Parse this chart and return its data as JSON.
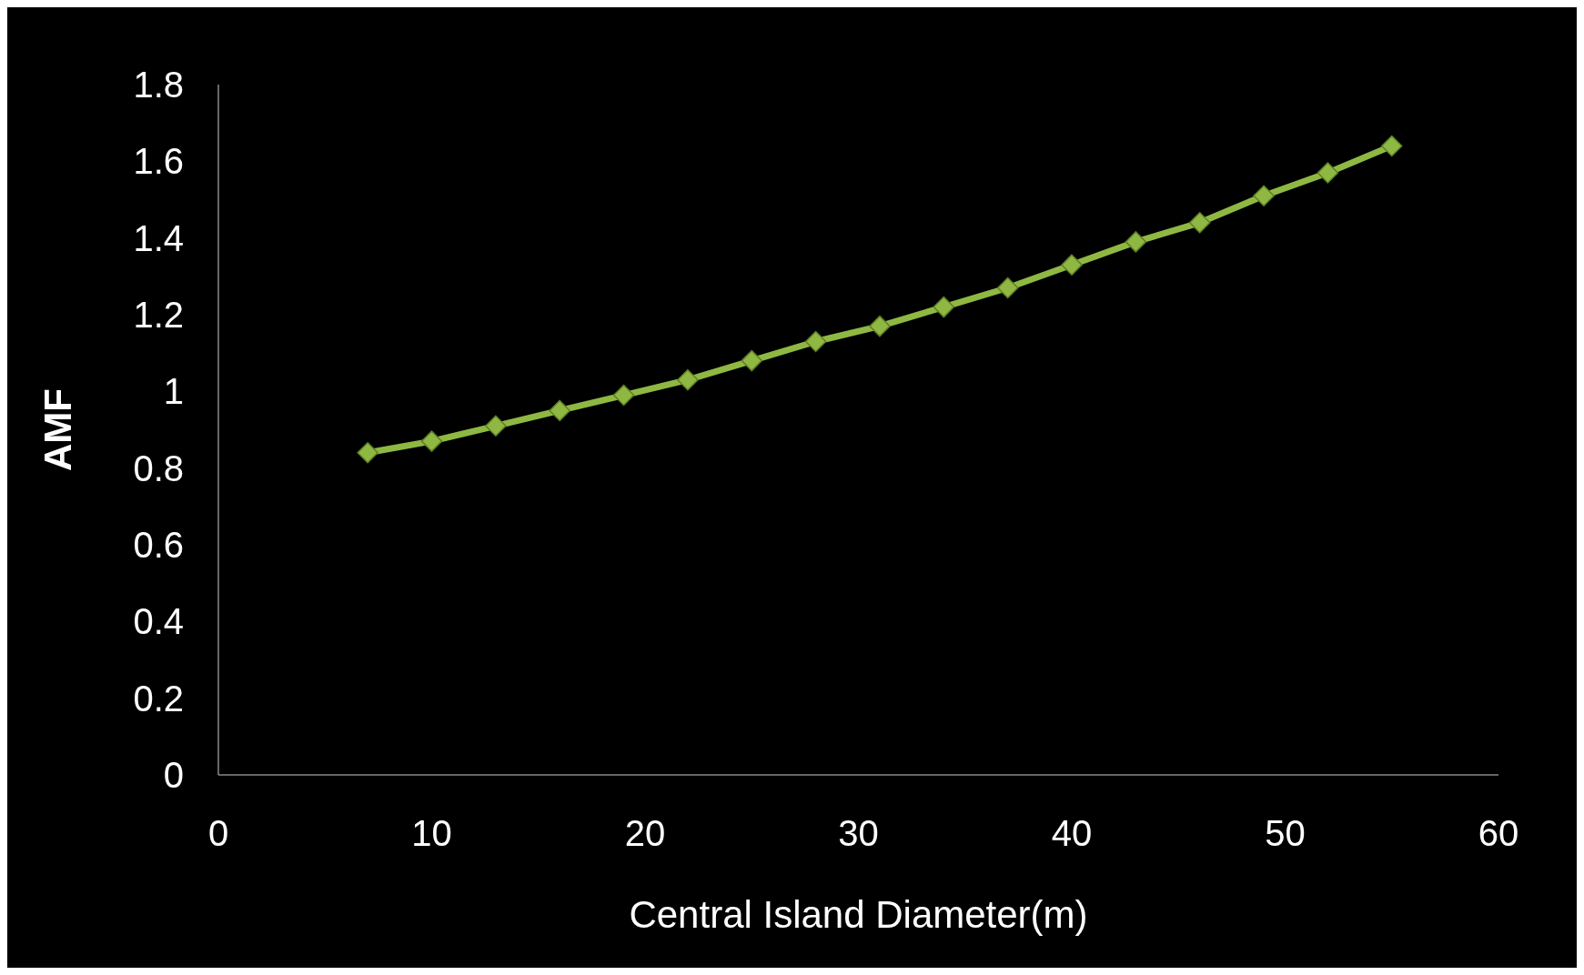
{
  "chart_data": {
    "type": "line",
    "xlabel": "Central Island Diameter(m)",
    "ylabel": "AMF",
    "x": [
      7,
      10,
      13,
      16,
      19,
      22,
      25,
      28,
      31,
      34,
      37,
      40,
      43,
      46,
      49,
      52,
      55
    ],
    "series": [
      {
        "color": "#8fb843",
        "values": [
          0.84,
          0.87,
          0.91,
          0.95,
          0.99,
          1.03,
          1.08,
          1.13,
          1.17,
          1.22,
          1.27,
          1.33,
          1.39,
          1.44,
          1.51,
          1.57,
          1.64
        ]
      }
    ],
    "xlim": [
      0,
      60
    ],
    "xticks": [
      0,
      10,
      20,
      30,
      40,
      50,
      60
    ],
    "ylim": [
      0,
      1.8
    ],
    "yticks": [
      0,
      0.2,
      0.4,
      0.6,
      0.8,
      1,
      1.2,
      1.4,
      1.6,
      1.8
    ],
    "grid": false,
    "marker": "diamond",
    "line_style": "solid"
  }
}
